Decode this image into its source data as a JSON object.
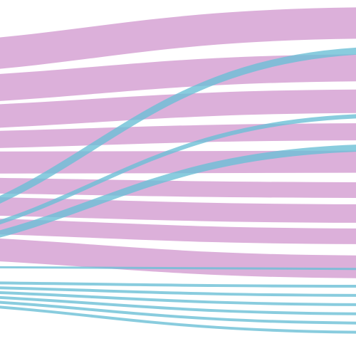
{
  "chart_data": {
    "type": "sankey",
    "links": [
      {
        "value": 44,
        "color": "#dcb0da"
      },
      {
        "value": 38,
        "color": "#dcb0da"
      },
      {
        "value": 33,
        "color": "#dcb0da"
      },
      {
        "value": 24,
        "color": "#dcb0da"
      },
      {
        "value": 31,
        "color": "#dcb0da"
      },
      {
        "value": 22,
        "color": "#dcb0da"
      },
      {
        "value": 26,
        "color": "#dcb0da"
      },
      {
        "value": 22,
        "color": "#dcb0da"
      },
      {
        "value": 32,
        "color": "#dcb0da"
      },
      {
        "value": 10,
        "color": "#6bbfd6"
      },
      {
        "value": 6,
        "color": "#6bbfd6"
      },
      {
        "value": 10,
        "color": "#6bbfd6"
      },
      {
        "value": 3,
        "color": "#6bbfd6"
      },
      {
        "value": 4,
        "color": "#6bbfd6"
      },
      {
        "value": 4,
        "color": "#6bbfd6"
      },
      {
        "value": 4,
        "color": "#6bbfd6"
      },
      {
        "value": 4,
        "color": "#6bbfd6"
      },
      {
        "value": 4,
        "color": "#6bbfd6"
      },
      {
        "value": 4,
        "color": "#6bbfd6"
      }
    ]
  }
}
